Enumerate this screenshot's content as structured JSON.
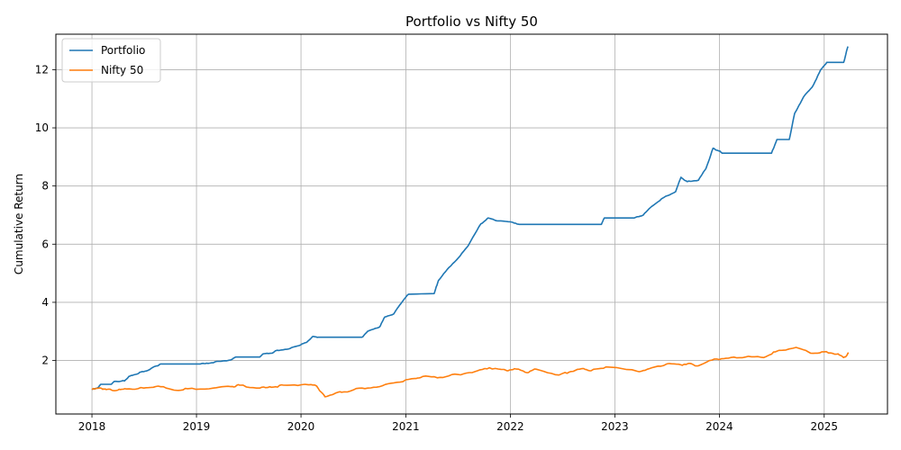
{
  "chart_data": {
    "type": "line",
    "title": "Portfolio vs Nifty 50",
    "xlabel": "",
    "ylabel": "Cumulative Return",
    "x_type": "date",
    "xlim": [
      "2017-08-28",
      "2025-08-10"
    ],
    "ylim": [
      0.16,
      13.22
    ],
    "grid": true,
    "legend_position": "upper-left",
    "x_ticks": [
      {
        "value": "2018-01-01",
        "label": "2018"
      },
      {
        "value": "2019-01-01",
        "label": "2019"
      },
      {
        "value": "2020-01-01",
        "label": "2020"
      },
      {
        "value": "2021-01-01",
        "label": "2021"
      },
      {
        "value": "2022-01-01",
        "label": "2022"
      },
      {
        "value": "2023-01-01",
        "label": "2023"
      },
      {
        "value": "2024-01-01",
        "label": "2024"
      },
      {
        "value": "2025-01-01",
        "label": "2025"
      }
    ],
    "y_ticks": [
      {
        "value": 2,
        "label": "2"
      },
      {
        "value": 4,
        "label": "4"
      },
      {
        "value": 6,
        "label": "6"
      },
      {
        "value": 8,
        "label": "8"
      },
      {
        "value": 10,
        "label": "10"
      },
      {
        "value": 12,
        "label": "12"
      }
    ],
    "series": [
      {
        "name": "Portfolio",
        "color": "#1f77b4",
        "points": [
          [
            "2018-01-01",
            1.0
          ],
          [
            "2018-01-20",
            1.05
          ],
          [
            "2018-02-01",
            1.18
          ],
          [
            "2018-03-10",
            1.18
          ],
          [
            "2018-03-20",
            1.28
          ],
          [
            "2018-04-25",
            1.3
          ],
          [
            "2018-05-10",
            1.45
          ],
          [
            "2018-06-01",
            1.52
          ],
          [
            "2018-06-20",
            1.6
          ],
          [
            "2018-07-20",
            1.68
          ],
          [
            "2018-08-10",
            1.8
          ],
          [
            "2018-09-01",
            1.88
          ],
          [
            "2019-01-15",
            1.88
          ],
          [
            "2019-02-10",
            1.9
          ],
          [
            "2019-03-20",
            1.97
          ],
          [
            "2019-05-01",
            2.02
          ],
          [
            "2019-05-20",
            2.12
          ],
          [
            "2019-08-10",
            2.12
          ],
          [
            "2019-08-20",
            2.22
          ],
          [
            "2019-09-20",
            2.25
          ],
          [
            "2019-10-10",
            2.35
          ],
          [
            "2019-11-20",
            2.4
          ],
          [
            "2019-12-20",
            2.5
          ],
          [
            "2020-01-20",
            2.62
          ],
          [
            "2020-02-10",
            2.82
          ],
          [
            "2020-03-01",
            2.8
          ],
          [
            "2020-08-01",
            2.8
          ],
          [
            "2020-08-20",
            3.0
          ],
          [
            "2020-10-01",
            3.15
          ],
          [
            "2020-10-20",
            3.5
          ],
          [
            "2020-11-20",
            3.6
          ],
          [
            "2020-12-10",
            3.9
          ],
          [
            "2021-01-10",
            4.28
          ],
          [
            "2021-04-10",
            4.3
          ],
          [
            "2021-04-25",
            4.75
          ],
          [
            "2021-06-01",
            5.2
          ],
          [
            "2021-07-10",
            5.6
          ],
          [
            "2021-08-10",
            6.0
          ],
          [
            "2021-09-20",
            6.7
          ],
          [
            "2021-10-15",
            6.9
          ],
          [
            "2021-11-20",
            6.8
          ],
          [
            "2022-01-10",
            6.75
          ],
          [
            "2022-02-01",
            6.68
          ],
          [
            "2022-11-15",
            6.68
          ],
          [
            "2022-11-25",
            6.9
          ],
          [
            "2023-03-10",
            6.9
          ],
          [
            "2023-04-10",
            7.0
          ],
          [
            "2023-05-10",
            7.3
          ],
          [
            "2023-06-20",
            7.6
          ],
          [
            "2023-08-01",
            7.8
          ],
          [
            "2023-08-20",
            8.3
          ],
          [
            "2023-09-10",
            8.15
          ],
          [
            "2023-10-20",
            8.2
          ],
          [
            "2023-11-15",
            8.6
          ],
          [
            "2023-12-10",
            9.3
          ],
          [
            "2024-01-01",
            9.2
          ],
          [
            "2024-01-10",
            9.13
          ],
          [
            "2024-07-01",
            9.13
          ],
          [
            "2024-07-20",
            9.6
          ],
          [
            "2024-09-01",
            9.6
          ],
          [
            "2024-09-20",
            10.5
          ],
          [
            "2024-10-20",
            11.05
          ],
          [
            "2024-11-20",
            11.4
          ],
          [
            "2024-12-20",
            12.0
          ],
          [
            "2025-01-10",
            12.25
          ],
          [
            "2025-03-10",
            12.25
          ],
          [
            "2025-03-25",
            12.8
          ]
        ]
      },
      {
        "name": "Nifty 50",
        "color": "#ff7f0e",
        "points": [
          [
            "2018-01-01",
            1.0
          ],
          [
            "2018-02-01",
            1.05
          ],
          [
            "2018-02-20",
            1.0
          ],
          [
            "2018-04-01",
            0.98
          ],
          [
            "2018-05-01",
            1.02
          ],
          [
            "2018-07-01",
            1.05
          ],
          [
            "2018-08-20",
            1.12
          ],
          [
            "2018-10-15",
            0.98
          ],
          [
            "2018-12-01",
            1.03
          ],
          [
            "2019-03-01",
            1.05
          ],
          [
            "2019-05-01",
            1.1
          ],
          [
            "2019-06-01",
            1.15
          ],
          [
            "2019-08-10",
            1.05
          ],
          [
            "2019-09-20",
            1.08
          ],
          [
            "2019-11-01",
            1.15
          ],
          [
            "2020-01-15",
            1.18
          ],
          [
            "2020-02-25",
            1.12
          ],
          [
            "2020-03-25",
            0.75
          ],
          [
            "2020-05-01",
            0.88
          ],
          [
            "2020-06-01",
            0.92
          ],
          [
            "2020-08-01",
            1.05
          ],
          [
            "2020-10-01",
            1.1
          ],
          [
            "2020-12-01",
            1.25
          ],
          [
            "2021-02-01",
            1.38
          ],
          [
            "2021-03-01",
            1.45
          ],
          [
            "2021-05-01",
            1.42
          ],
          [
            "2021-07-01",
            1.52
          ],
          [
            "2021-09-01",
            1.62
          ],
          [
            "2021-10-20",
            1.75
          ],
          [
            "2021-12-20",
            1.65
          ],
          [
            "2022-01-15",
            1.72
          ],
          [
            "2022-03-01",
            1.58
          ],
          [
            "2022-04-01",
            1.7
          ],
          [
            "2022-06-20",
            1.5
          ],
          [
            "2022-08-01",
            1.62
          ],
          [
            "2022-09-15",
            1.72
          ],
          [
            "2022-10-10",
            1.65
          ],
          [
            "2022-12-01",
            1.78
          ],
          [
            "2023-03-20",
            1.63
          ],
          [
            "2023-05-01",
            1.72
          ],
          [
            "2023-07-01",
            1.88
          ],
          [
            "2023-08-20",
            1.85
          ],
          [
            "2023-09-15",
            1.9
          ],
          [
            "2023-10-20",
            1.82
          ],
          [
            "2023-12-15",
            2.05
          ],
          [
            "2024-02-01",
            2.08
          ],
          [
            "2024-04-01",
            2.12
          ],
          [
            "2024-06-04",
            2.1
          ],
          [
            "2024-07-15",
            2.3
          ],
          [
            "2024-09-25",
            2.45
          ],
          [
            "2024-11-15",
            2.25
          ],
          [
            "2025-01-01",
            2.3
          ],
          [
            "2025-02-15",
            2.22
          ],
          [
            "2025-03-10",
            2.1
          ],
          [
            "2025-03-28",
            2.25
          ]
        ]
      }
    ]
  }
}
